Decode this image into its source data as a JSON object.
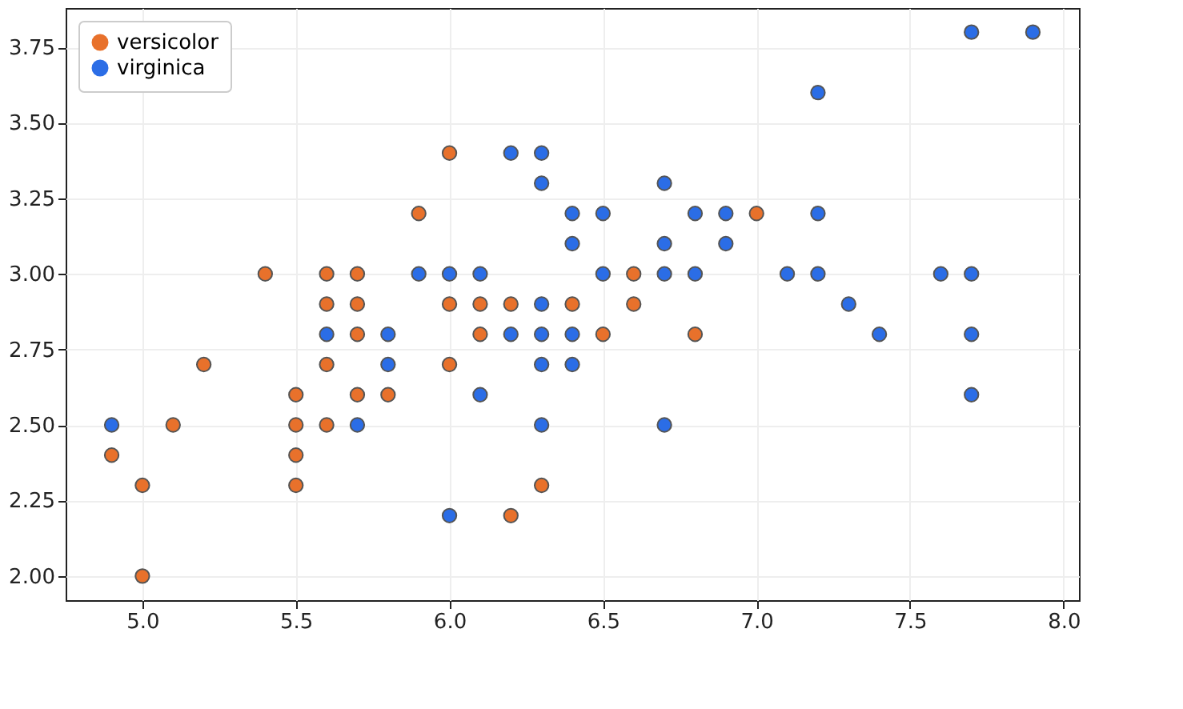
{
  "chart_data": {
    "type": "scatter",
    "marker": "circle",
    "legend": "top left",
    "grid": true,
    "xlim": [
      4.75,
      8.05
    ],
    "ylim": [
      1.92,
      3.88
    ],
    "xticks": [
      {
        "value": 5,
        "label": "5.0"
      },
      {
        "value": 5.5,
        "label": "5.5"
      },
      {
        "value": 6,
        "label": "6.0"
      },
      {
        "value": 6.5,
        "label": "6.5"
      },
      {
        "value": 7,
        "label": "7.0"
      },
      {
        "value": 7.5,
        "label": "7.5"
      },
      {
        "value": 8,
        "label": "8.0"
      }
    ],
    "yticks": [
      {
        "value": 2,
        "label": "2.00"
      },
      {
        "value": 2.25,
        "label": "2.25"
      },
      {
        "value": 2.5,
        "label": "2.50"
      },
      {
        "value": 2.75,
        "label": "2.75"
      },
      {
        "value": 3,
        "label": "3.00"
      },
      {
        "value": 3.25,
        "label": "3.25"
      },
      {
        "value": 3.5,
        "label": "3.50"
      },
      {
        "value": 3.75,
        "label": "3.75"
      }
    ],
    "series": [
      {
        "name": "versicolor",
        "color": "#e8712b",
        "x": [
          7.0,
          5.5,
          6.5,
          5.7,
          4.9,
          6.6,
          5.2,
          5.0,
          6.1,
          5.6,
          5.6,
          6.2,
          5.6,
          5.9,
          6.1,
          6.4,
          6.6,
          6.8,
          6.0,
          5.7,
          5.5,
          6.0,
          5.4,
          6.0,
          6.3,
          5.5,
          5.5,
          5.8,
          5.0,
          5.6,
          5.7,
          5.7,
          6.2,
          5.1
        ],
        "values": [
          3.2,
          2.3,
          2.8,
          2.8,
          2.4,
          2.9,
          2.7,
          2.0,
          2.9,
          2.9,
          3.0,
          2.2,
          2.5,
          3.2,
          2.8,
          2.9,
          3.0,
          2.8,
          2.9,
          2.6,
          2.4,
          2.7,
          3.0,
          3.4,
          2.3,
          2.5,
          2.6,
          2.6,
          2.3,
          2.7,
          3.0,
          2.9,
          2.9,
          2.5
        ]
      },
      {
        "name": "virginica",
        "color": "#2b6de6",
        "x": [
          6.3,
          5.8,
          7.1,
          6.3,
          6.5,
          7.6,
          4.9,
          7.3,
          6.7,
          7.2,
          6.5,
          6.4,
          6.8,
          5.7,
          5.8,
          6.4,
          7.7,
          7.7,
          6.0,
          6.9,
          5.6,
          7.7,
          6.3,
          6.7,
          7.2,
          6.2,
          6.1,
          6.4,
          7.2,
          7.4,
          7.9,
          6.3,
          6.1,
          7.7,
          6.3,
          6.4,
          6.0,
          6.9,
          6.7,
          6.8,
          6.7,
          6.3,
          6.2,
          5.9
        ],
        "values": [
          3.3,
          2.7,
          3.0,
          2.9,
          3.0,
          3.0,
          2.5,
          2.9,
          2.5,
          3.6,
          3.2,
          2.7,
          3.0,
          2.5,
          2.8,
          3.2,
          3.8,
          2.6,
          2.2,
          3.2,
          2.8,
          2.8,
          2.7,
          3.3,
          3.2,
          2.8,
          3.0,
          2.8,
          3.0,
          2.8,
          3.8,
          2.8,
          2.6,
          3.0,
          3.4,
          3.1,
          3.0,
          3.1,
          3.1,
          3.2,
          3.0,
          2.5,
          3.4,
          3.0
        ]
      }
    ]
  }
}
